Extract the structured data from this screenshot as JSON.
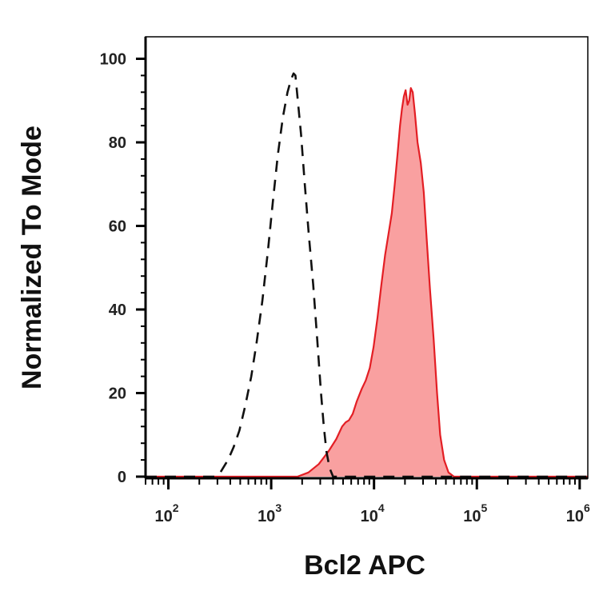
{
  "chart_data": {
    "type": "area",
    "title": "",
    "xlabel": "Bcl2 APC",
    "ylabel": "Normalized To Mode",
    "xscale": "log",
    "xlim": [
      60,
      1200000
    ],
    "ylim": [
      0,
      100
    ],
    "x_ticks": [
      {
        "base": "10",
        "exp": "2",
        "value": 100
      },
      {
        "base": "10",
        "exp": "3",
        "value": 1000
      },
      {
        "base": "10",
        "exp": "4",
        "value": 10000
      },
      {
        "base": "10",
        "exp": "5",
        "value": 100000
      },
      {
        "base": "10",
        "exp": "6",
        "value": 1000000
      }
    ],
    "y_ticks": [
      "0",
      "20",
      "40",
      "60",
      "80",
      "100"
    ],
    "grid": false,
    "series": [
      {
        "style": "dashed-outline",
        "color": "#111111",
        "points": [
          [
            60,
            0
          ],
          [
            280,
            0
          ],
          [
            320,
            1
          ],
          [
            380,
            4
          ],
          [
            430,
            7
          ],
          [
            490,
            11
          ],
          [
            560,
            17
          ],
          [
            640,
            24
          ],
          [
            720,
            32
          ],
          [
            820,
            42
          ],
          [
            930,
            54
          ],
          [
            1040,
            66
          ],
          [
            1160,
            77
          ],
          [
            1300,
            86
          ],
          [
            1440,
            92
          ],
          [
            1560,
            95
          ],
          [
            1650,
            96.5
          ],
          [
            1720,
            96
          ],
          [
            1800,
            91
          ],
          [
            1950,
            82
          ],
          [
            2120,
            70
          ],
          [
            2320,
            58
          ],
          [
            2560,
            46
          ],
          [
            2800,
            33
          ],
          [
            3050,
            20
          ],
          [
            3250,
            12
          ],
          [
            3450,
            6
          ],
          [
            3700,
            2
          ],
          [
            4000,
            0
          ],
          [
            20000,
            0
          ],
          [
            1200000,
            0
          ]
        ]
      },
      {
        "style": "filled",
        "color": "#e31e24",
        "fill": "#f9a0a0",
        "points": [
          [
            60,
            0
          ],
          [
            1800,
            0
          ],
          [
            2300,
            1
          ],
          [
            2900,
            3
          ],
          [
            3600,
            6
          ],
          [
            4300,
            9
          ],
          [
            4900,
            12
          ],
          [
            5300,
            13
          ],
          [
            5700,
            13.5
          ],
          [
            6200,
            15
          ],
          [
            6800,
            18
          ],
          [
            7600,
            21
          ],
          [
            8300,
            23
          ],
          [
            9100,
            26
          ],
          [
            9900,
            31
          ],
          [
            10800,
            38
          ],
          [
            11800,
            46
          ],
          [
            12800,
            53
          ],
          [
            13800,
            58
          ],
          [
            14900,
            63
          ],
          [
            15900,
            70
          ],
          [
            16900,
            77
          ],
          [
            17900,
            84
          ],
          [
            18700,
            88
          ],
          [
            19500,
            91
          ],
          [
            20300,
            92.5
          ],
          [
            21200,
            89
          ],
          [
            22000,
            90
          ],
          [
            22800,
            93
          ],
          [
            23800,
            92
          ],
          [
            25000,
            87
          ],
          [
            26500,
            80
          ],
          [
            28500,
            75
          ],
          [
            30500,
            68
          ],
          [
            32500,
            57
          ],
          [
            35000,
            45
          ],
          [
            38000,
            33
          ],
          [
            41000,
            20
          ],
          [
            44000,
            10
          ],
          [
            48000,
            4
          ],
          [
            53000,
            1
          ],
          [
            60000,
            0
          ],
          [
            1200000,
            0
          ]
        ]
      }
    ]
  }
}
